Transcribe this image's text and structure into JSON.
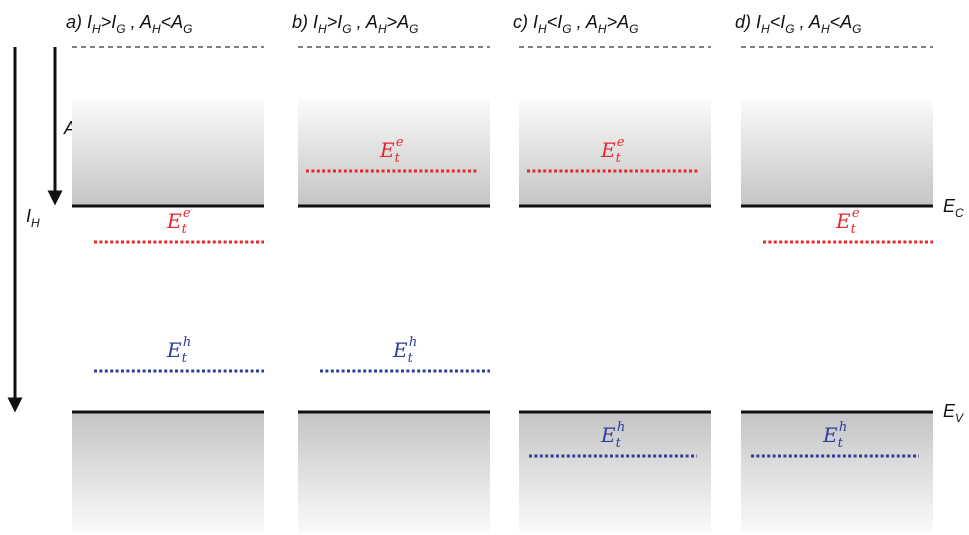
{
  "colors": {
    "electron_trap": "#e8262b",
    "hole_trap": "#2e3d9c",
    "band_edge": "#111111",
    "vacuum": "#555555",
    "gradient_dark": "#c4c4c4",
    "gradient_light": "#fafafa"
  },
  "axes": {
    "ionization_label": {
      "main": "I",
      "sub": "H"
    },
    "affinity_label": {
      "main": "A",
      "sub": "H"
    }
  },
  "bands": {
    "conduction": {
      "main": "E",
      "sub": "C"
    },
    "valence": {
      "main": "E",
      "sub": "V"
    }
  },
  "trap_labels": {
    "electron": {
      "main": "E",
      "sub": "t",
      "sup": "e"
    },
    "hole": {
      "main": "E",
      "sub": "t",
      "sup": "h"
    }
  },
  "panels": [
    {
      "id": "a",
      "title": {
        "prefix": "a) ",
        "i1": "I",
        "i1sub": "H",
        "rel1": ">",
        "i2": "I",
        "i2sub": "G",
        "sep": " , ",
        "a1": "A",
        "a1sub": "H",
        "rel2": "<",
        "a2": "A",
        "a2sub": "G"
      },
      "electron_trap": "below_conduction",
      "hole_trap": "above_valence"
    },
    {
      "id": "b",
      "title": {
        "prefix": "b) ",
        "i1": "I",
        "i1sub": "H",
        "rel1": ">",
        "i2": "I",
        "i2sub": "G",
        "sep": " , ",
        "a1": "A",
        "a1sub": "H",
        "rel2": ">",
        "a2": "A",
        "a2sub": "G"
      },
      "electron_trap": "above_conduction",
      "hole_trap": "above_valence"
    },
    {
      "id": "c",
      "title": {
        "prefix": "c) ",
        "i1": "I",
        "i1sub": "H",
        "rel1": "<",
        "i2": "I",
        "i2sub": "G",
        "sep": " , ",
        "a1": "A",
        "a1sub": "H",
        "rel2": ">",
        "a2": "A",
        "a2sub": "G"
      },
      "electron_trap": "above_conduction",
      "hole_trap": "below_valence"
    },
    {
      "id": "d",
      "title": {
        "prefix": "d) ",
        "i1": "I",
        "i1sub": "H",
        "rel1": "<",
        "i2": "I",
        "i2sub": "G",
        "sep": " , ",
        "a1": "A",
        "a1sub": "H",
        "rel2": "<",
        "a2": "A",
        "a2sub": "G"
      },
      "electron_trap": "below_conduction",
      "hole_trap": "below_valence"
    }
  ]
}
